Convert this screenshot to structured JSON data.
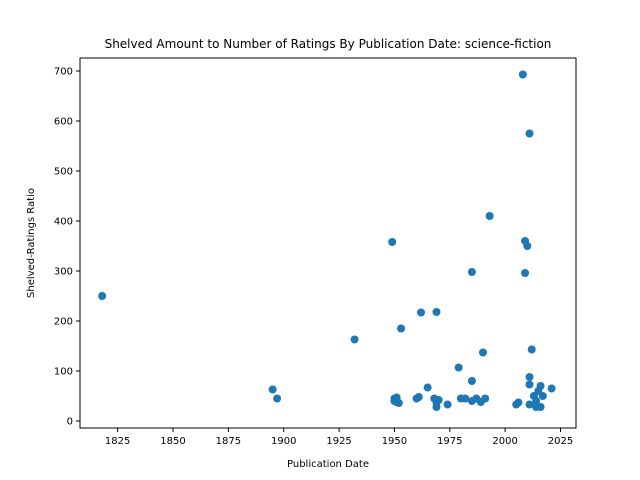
{
  "chart_data": {
    "type": "scatter",
    "title": "Shelved Amount to Number of Ratings By Publication Date: science-fiction",
    "xlabel": "Publication Date",
    "ylabel": "Shelved-Ratings Ratio",
    "xlim": [
      1808,
      2032
    ],
    "ylim": [
      -14,
      726
    ],
    "xticks": [
      1825,
      1850,
      1875,
      1900,
      1925,
      1950,
      1975,
      2000,
      2025
    ],
    "yticks": [
      0,
      100,
      200,
      300,
      400,
      500,
      600,
      700
    ],
    "grid": false,
    "marker_color": "#1f77b4",
    "series": [
      {
        "points": [
          [
            1818,
            250
          ],
          [
            1895,
            63
          ],
          [
            1897,
            45
          ],
          [
            1932,
            163
          ],
          [
            1949,
            358
          ],
          [
            1950,
            45
          ],
          [
            1950,
            40
          ],
          [
            1951,
            47
          ],
          [
            1951,
            38
          ],
          [
            1952,
            36
          ],
          [
            1953,
            185
          ],
          [
            1960,
            45
          ],
          [
            1961,
            48
          ],
          [
            1962,
            217
          ],
          [
            1965,
            67
          ],
          [
            1968,
            45
          ],
          [
            1969,
            37
          ],
          [
            1969,
            28
          ],
          [
            1969,
            218
          ],
          [
            1970,
            42
          ],
          [
            1974,
            33
          ],
          [
            1979,
            107
          ],
          [
            1980,
            45
          ],
          [
            1982,
            45
          ],
          [
            1985,
            80
          ],
          [
            1985,
            40
          ],
          [
            1985,
            298
          ],
          [
            1987,
            45
          ],
          [
            1989,
            38
          ],
          [
            1990,
            137
          ],
          [
            1991,
            45
          ],
          [
            1993,
            410
          ],
          [
            2005,
            33
          ],
          [
            2006,
            37
          ],
          [
            2008,
            693
          ],
          [
            2009,
            360
          ],
          [
            2009,
            296
          ],
          [
            2010,
            350
          ],
          [
            2011,
            575
          ],
          [
            2011,
            88
          ],
          [
            2011,
            73
          ],
          [
            2011,
            33
          ],
          [
            2012,
            143
          ],
          [
            2013,
            50
          ],
          [
            2014,
            28
          ],
          [
            2014,
            40
          ],
          [
            2015,
            60
          ],
          [
            2016,
            70
          ],
          [
            2016,
            28
          ],
          [
            2017,
            50
          ],
          [
            2021,
            65
          ]
        ]
      }
    ]
  }
}
